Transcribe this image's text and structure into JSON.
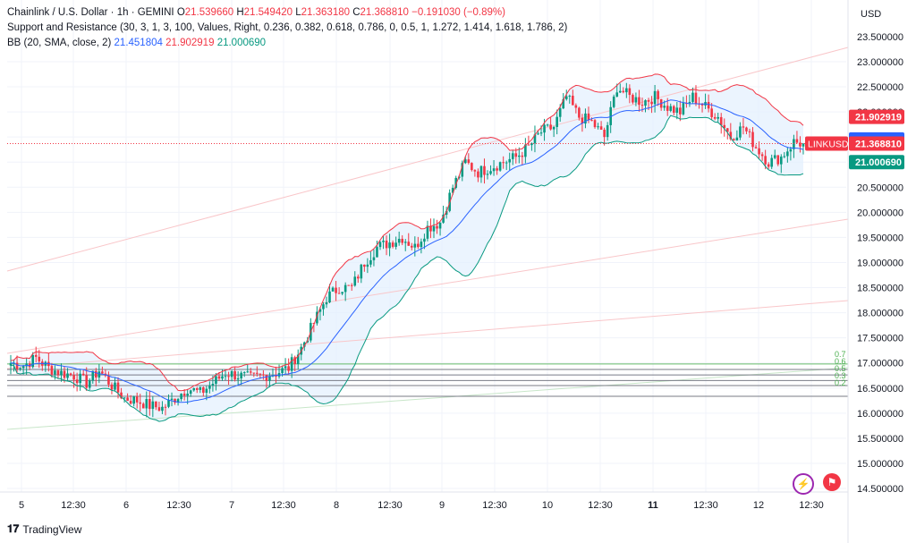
{
  "header": {
    "symbol": "Chainlink / U.S. Dollar · 1h · GEMINI",
    "o_label": "O",
    "o_value": "21.539660",
    "h_label": "H",
    "h_value": "21.549420",
    "l_label": "L",
    "l_value": "21.363180",
    "c_label": "C",
    "c_value": "21.368810",
    "change": "−0.191030 (−0.89%)",
    "sr_indicator": "Support and Resistance (30, 3, 1, 3, 100, Values, Right, 0.236, 0.382, 0.618, 0.786, 0, 0.5, 1, 1.272, 1.414, 1.618, 1.786, 2)",
    "bb_indicator": "BB (20, SMA, close, 2)",
    "bb_basis": "21.451804",
    "bb_upper": "21.902919",
    "bb_lower": "21.000690"
  },
  "brand": {
    "name": "TradingView"
  },
  "colors": {
    "up": "#089981",
    "down": "#f23645",
    "basis": "#2962ff",
    "upper": "#f23645",
    "lower": "#089981",
    "fill": "#e3f0fd"
  },
  "chart_data": {
    "type": "candlestick",
    "currency_label": "USD",
    "y_ticks": [
      "23.000000",
      "22.500000",
      "22.000000",
      "21.500000",
      "21.000000",
      "20.500000",
      "20.000000",
      "19.500000",
      "19.000000",
      "18.500000",
      "18.000000",
      "17.500000",
      "17.000000",
      "16.500000",
      "16.000000",
      "15.500000",
      "15.000000",
      "14.500000"
    ],
    "ylim": [
      14.5,
      23.5
    ],
    "top_tick": "23.500000",
    "x_ticks": [
      {
        "label": "5",
        "bold": false
      },
      {
        "label": "12:30",
        "bold": false
      },
      {
        "label": "6",
        "bold": false
      },
      {
        "label": "12:30",
        "bold": false
      },
      {
        "label": "7",
        "bold": false
      },
      {
        "label": "12:30",
        "bold": false
      },
      {
        "label": "8",
        "bold": false
      },
      {
        "label": "12:30",
        "bold": false
      },
      {
        "label": "9",
        "bold": false
      },
      {
        "label": "12:30",
        "bold": false
      },
      {
        "label": "10",
        "bold": false
      },
      {
        "label": "12:30",
        "bold": false
      },
      {
        "label": "11",
        "bold": true
      },
      {
        "label": "12:30",
        "bold": false
      },
      {
        "label": "12",
        "bold": false
      },
      {
        "label": "12:30",
        "bold": false
      }
    ],
    "price_labels": [
      {
        "text": "21.902919",
        "value": 21.902919,
        "color": "#f23645"
      },
      {
        "text": "21.451804",
        "value": 21.451804,
        "color": "#2962ff"
      },
      {
        "text": "21.368810",
        "value": 21.36881,
        "color": "#f23645",
        "tag": "LINKUSD"
      },
      {
        "text": "21.000690",
        "value": 21.00069,
        "color": "#089981"
      }
    ],
    "fib_labels": [
      "0.7",
      "0.6",
      "0.5",
      "0.3",
      "0.2"
    ],
    "support_levels": [
      16.98,
      16.87,
      16.76,
      16.65,
      16.55
    ],
    "last_price": 21.36881,
    "close_path": [
      [
        0,
        17.0
      ],
      [
        4,
        16.95
      ],
      [
        8,
        17.1
      ],
      [
        12,
        16.9
      ],
      [
        16,
        16.8
      ],
      [
        20,
        16.75
      ],
      [
        24,
        16.6
      ],
      [
        28,
        16.85
      ],
      [
        32,
        16.55
      ],
      [
        36,
        16.3
      ],
      [
        40,
        16.25
      ],
      [
        44,
        16.15
      ],
      [
        48,
        16.1
      ],
      [
        52,
        16.3
      ],
      [
        56,
        16.5
      ],
      [
        60,
        16.4
      ],
      [
        64,
        16.6
      ],
      [
        68,
        16.8
      ],
      [
        72,
        16.75
      ],
      [
        76,
        16.7
      ],
      [
        80,
        16.75
      ],
      [
        84,
        16.8
      ],
      [
        88,
        16.9
      ],
      [
        92,
        17.3
      ],
      [
        96,
        17.8
      ],
      [
        100,
        18.3
      ],
      [
        104,
        18.5
      ],
      [
        108,
        18.5
      ],
      [
        112,
        19.0
      ],
      [
        116,
        19.3
      ],
      [
        120,
        19.4
      ],
      [
        124,
        19.5
      ],
      [
        128,
        19.3
      ],
      [
        132,
        19.7
      ],
      [
        136,
        19.8
      ],
      [
        140,
        20.5
      ],
      [
        144,
        21.0
      ],
      [
        148,
        20.8
      ],
      [
        152,
        20.9
      ],
      [
        156,
        21.0
      ],
      [
        160,
        21.1
      ],
      [
        164,
        21.3
      ],
      [
        168,
        21.6
      ],
      [
        172,
        21.7
      ],
      [
        176,
        22.3
      ],
      [
        180,
        21.9
      ],
      [
        184,
        21.8
      ],
      [
        188,
        21.5
      ],
      [
        192,
        22.5
      ],
      [
        196,
        22.3
      ],
      [
        200,
        22.2
      ],
      [
        204,
        22.3
      ],
      [
        208,
        22.1
      ],
      [
        212,
        22.0
      ],
      [
        216,
        22.3
      ],
      [
        220,
        22.1
      ],
      [
        224,
        21.9
      ],
      [
        228,
        21.5
      ],
      [
        232,
        21.7
      ],
      [
        236,
        21.3
      ],
      [
        240,
        21.0
      ],
      [
        244,
        21.1
      ],
      [
        248,
        21.4
      ],
      [
        251,
        21.37
      ]
    ],
    "candle_count": 252
  }
}
